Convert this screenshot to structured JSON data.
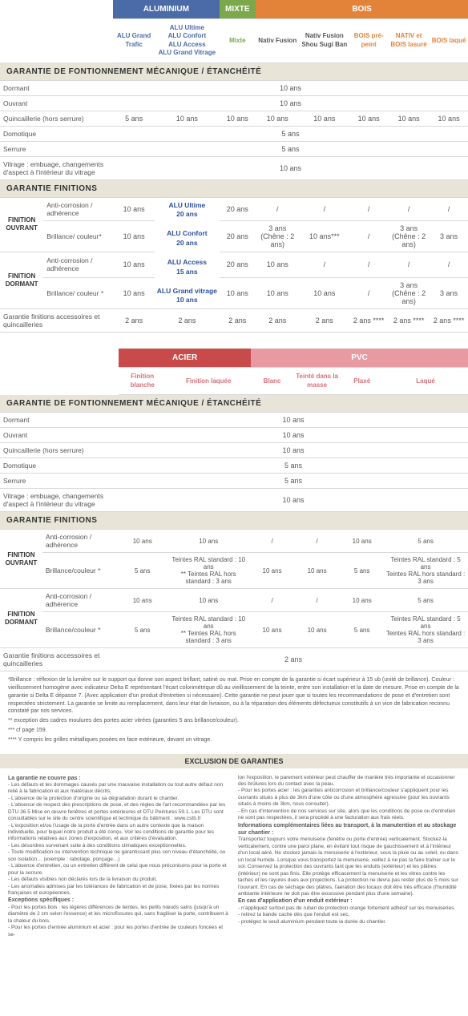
{
  "tbl1": {
    "cats": [
      {
        "label": "ALUMINIUM",
        "bg": "#4a6aa8",
        "span": 2
      },
      {
        "label": "MIXTE",
        "bg": "#7aa84a",
        "span": 1
      },
      {
        "label": "BOIS",
        "bg": "#e3833a",
        "span": 5
      }
    ],
    "subs": [
      {
        "label": "ALU Grand Trafic",
        "cls": "sub-head"
      },
      {
        "label": "ALU Ultime\nALU Confort\nALU Access\nALU Grand Vitrage",
        "cls": "sub-head"
      },
      {
        "label": "Mixte",
        "cls": "sub-head",
        "color": "#7aa84a"
      },
      {
        "label": "Nativ Fusion",
        "cls": "sub-head",
        "color": "#555"
      },
      {
        "label": "Nativ Fusion Shou Sugi Ban",
        "cls": "sub-head",
        "color": "#555"
      },
      {
        "label": "BOIS pré-peint",
        "cls": "sub-head orange-sub"
      },
      {
        "label": "NATIV et BOIS lasuré",
        "cls": "sub-head orange-sub"
      },
      {
        "label": "BOIS laqué",
        "cls": "sub-head orange-sub"
      }
    ],
    "sec1": "GARANTIE DE FONTIONNEMENT  MÉCANIQUE / ÉTANCHÉITÉ",
    "rows1": [
      {
        "label": "Dormant",
        "full": "10 ans"
      },
      {
        "label": "Ouvrant",
        "full": "10 ans"
      },
      {
        "label": "Quincaillerie (hors serrure)",
        "cells": [
          "5 ans",
          "10 ans",
          "10 ans",
          "10 ans",
          "10 ans",
          "10 ans",
          "10 ans",
          "10 ans"
        ]
      },
      {
        "label": "Domotique",
        "full": "5 ans"
      },
      {
        "label": "Serrure",
        "full": "5 ans"
      },
      {
        "label": "Vitrage : embuage, changements d'aspect à l'intérieur du vitrage",
        "full": "10 ans"
      }
    ],
    "sec2": "GARANTIE FINITIONS",
    "fin": {
      "ouv": {
        "side": "FINITION OUVRANT",
        "r1": {
          "label": "Anti-corrosion / adhérence",
          "cells": [
            "10 ans",
            "",
            "20 ans",
            "/",
            "/",
            "/",
            "/",
            "/"
          ]
        },
        "r2": {
          "label": "Brillance/ couleur*",
          "cells": [
            "10 ans",
            "",
            "20 ans",
            "3 ans (Chêne : 2 ans)",
            "10 ans***",
            "/",
            "3 ans (Chêne : 2 ans)",
            "3 ans"
          ]
        }
      },
      "dor": {
        "side": "FINITION DORMANT",
        "r1": {
          "label": "Anti-corrosion / adhérence",
          "cells": [
            "10 ans",
            "",
            "20 ans",
            "10 ans",
            "/",
            "/",
            "/",
            "/"
          ]
        },
        "r2": {
          "label": "Brillance/ couleur *",
          "cells": [
            "10 ans",
            "",
            "10 ans",
            "10 ans",
            "10 ans",
            "/",
            "3 ans (Chêne : 2 ans)",
            "3 ans"
          ]
        }
      },
      "alu_multi": "ALU Ultime\n20 ans\n\nALU Confort\n20 ans\n\nALU Access\n15 ans\n\nALU Grand vitrage\n10 ans"
    },
    "acc": {
      "label": "Garantie finitions accessoires et quincailleries",
      "cells": [
        "2 ans",
        "2 ans",
        "2 ans",
        "2 ans",
        "2 ans",
        "2 ans ****",
        "2 ans ****",
        "2 ans ****"
      ]
    }
  },
  "tbl2": {
    "cats": [
      {
        "label": "ACIER",
        "bg": "#c94a4a",
        "span": 2
      },
      {
        "label": "PVC",
        "bg": "#e89aa3",
        "span": 4
      }
    ],
    "subs": [
      {
        "label": "Finition blanche",
        "cls": "sub-head pink-sub"
      },
      {
        "label": "Finition laquée",
        "cls": "sub-head pink-sub"
      },
      {
        "label": "Blanc",
        "cls": "sub-head pink-sub"
      },
      {
        "label": "Teinté dans la masse",
        "cls": "sub-head pink-sub"
      },
      {
        "label": "Plaxé",
        "cls": "sub-head pink-sub"
      },
      {
        "label": "Laqué",
        "cls": "sub-head pink-sub"
      }
    ],
    "sec1": "GARANTIE DE FONTIONNEMENT  MÉCANIQUE / ÉTANCHÉITÉ",
    "rows1": [
      {
        "label": "Dormant",
        "full": "10 ans"
      },
      {
        "label": "Ouvrant",
        "full": "10 ans"
      },
      {
        "label": "Quincaillerie (hors serrure)",
        "full": "10 ans"
      },
      {
        "label": "Domotique",
        "full": "5 ans"
      },
      {
        "label": "Serrure",
        "full": "5 ans"
      },
      {
        "label": "Vitrage : embuage, changements d'aspect à l'intérieur du vitrage",
        "full": "10 ans"
      }
    ],
    "sec2": "GARANTIE FINITIONS",
    "fin": {
      "ouv": {
        "side": "FINITION OUVRANT",
        "r1": {
          "label": "Anti-corrosion / adhérence",
          "cells": [
            "10 ans",
            "10 ans",
            "/",
            "/",
            "10 ans",
            "5 ans"
          ]
        },
        "r2": {
          "label": "Brillance/couleur *",
          "cells": [
            "5 ans",
            "Teintes RAL standard : 10 ans\n** Teintes RAL hors standard :  3 ans",
            "10 ans",
            "10 ans",
            "5 ans",
            "Teintes RAL standard : 5 ans\nTeintes RAL hors standard : 3 ans"
          ]
        }
      },
      "dor": {
        "side": "FINITION DORMANT",
        "r1": {
          "label": "Anti-corrosion / adhérence",
          "cells": [
            "10 ans",
            "10 ans",
            "/",
            "/",
            "10 ans",
            "5 ans"
          ]
        },
        "r2": {
          "label": "Brillance/couleur *",
          "cells": [
            "5 ans",
            "Teintes RAL standard : 10 ans\n** Teintes RAL hors standard :  3 ans",
            "10 ans",
            "10 ans",
            "5 ans",
            "Teintes RAL standard : 5 ans\nTeintes RAL hors standard : 3 ans"
          ]
        }
      }
    },
    "acc": {
      "label": "Garantie finitions accessoires et quincailleries",
      "full": "2 ans"
    }
  },
  "notes": [
    "*Brillance : réflexion de la lumière sur le support qui donne son aspect brillant, satiné ou mat. Prise en compte de la garantie si écart supérieur à 15 ub (unité de brillance). Couleur : vieillissement homogène avec indicateur Delta E représentant l'écart colorimétrique dû au vieillissement de la teinte, entre son installation et la date de mesure. Prise en compte de la garantie si Delta E dépasse 7. (Avec application d'un produit d'entretien si nécessaire). Cette garantie ne peut jouer que si toutes les recommandations de pose et d'entretien sont respectées strictement. La garantie se limite au remplacement, dans leur état de livraison, ou à la réparation des éléments défectueux constitutifs à un vice de fabrication reconnu constaté par nos services.",
    "** exception des cadres moulures des portes acier vitrées (garanties 5 ans brillance/couleur).",
    "*** cf page 159.",
    "**** Y compris les grilles métalliques posées en face extérieure, devant un vitrage."
  ],
  "excl_title": "EXCLUSION DE GARANTIES",
  "excl_l": [
    "La garantie ne couvre pas :",
    "- Les défauts et les dommages causés par une mauvaise installation ou tout autre défaut non relié à la fabrication et aux matériaux décrits.",
    "- L'absence de la protection d'origine ou sa dégradation durant le chantier.",
    "- L'absence de respect des prescriptions de pose, et des règles de l'art recommandées par les DTU 36.5 Mise en œuvre fenêtres et portes extérieures et DTU Peintures 59.1. Les DTU sont consultables sur le site du centre scientifique et technique du bâtiment : www.cstb.fr",
    "- L'exposition et/ou l'usage de la porte d'entrée dans un autre contexte que la maison individuelle, pour lequel notre produit a été conçu. Voir les conditions de garantie pour les informations relatives aux zones d'exposition, et aux critères d'évaluation.",
    "- Les désordres survenant suite à des conditions climatiques exceptionnelles.",
    "- Toute modification ou intervention technique ne garantissant plus son niveau d'étanchéité, ou son isolation… (exemple : rabotage, ponçage…)",
    "- L'absence d'entretien, ou un entretien différent de celui que nous préconisons pour la porte et pour la serrure.",
    "- Les défauts visibles non déclarés lors de la livraison du produit.",
    "- Les anomalies admises par les tolérances de fabrication et de pose, fixées par les normes françaises et européennes.",
    "Exceptions spécifiques :",
    "- Pour les portes bois : les légères différences de teintes, les petits nœuds sains (jusqu'à un diamètre de 2 cm selon l'essence) et les microfissures qui, sans fragiliser la porte, contribuent à la chaleur du bois.",
    "- Pour les portes d'entrée aluminium et acier : pour les portes d'entrée de couleurs foncées et se-"
  ],
  "excl_r": [
    "lon l'exposition, le parement extérieur peut chauffer de manière très importante et occasionner des brûlures lors du contact avec la peau.",
    "- Pour les portes acier : les garanties anticorrosion et brillance/couleur s'appliquent pour les ouvrants situés à plus de 3km d'une côte ou d'une atmosphère agressive (pour les ouvrants situés à moins de 3km, nous consulter).",
    "- En cas d'intervention de nos services sur site, alors que les conditions de pose ou d'entretien ne sont pas respectées, il sera procédé à une facturation aux frais réels.",
    "Informations complémentaires liées au transport, à la manutention et au stockage sur chantier :",
    "Transportez toujours votre menuiserie (fenêtre ou porte d'entrée) verticalement. Stockez-la verticalement, contre une paroi plane, en évitant tout risque de gauchissement et à l'intérieur d'un local aéré. Ne stockez jamais la menuiserie à l'extérieur, sous la pluie ou au soleil, ou dans un local humide. Lorsque vous transportez la menuiserie, veillez à ne pas la faire traîner sur le sol. Conservez la protection des ouvrants tant que les enduits (extérieur) et les plâtres (intérieur) ne sont pas finis. Elle protège efficacement la menuiserie et les vitres contre les taches et les rayures dues aux projections. La protection ne devra pas rester plus de 5 mois sur l'ouvrant. En cas de séchage des plâtres, l'aération des locaux doit être très efficace (l'humidité ambiante intérieure ne doit pas être excessive pendant plus d'une semaine).",
    "En cas d'application d'un enduit extérieur :",
    "- n'appliquez surtout pas de ruban de protection orange fortement adhésif sur les menuiseries.",
    "- retirez la bande cache dès que l'enduit est sec.",
    "- protégez le seuil aluminium pendant toute la durée du chantier."
  ]
}
